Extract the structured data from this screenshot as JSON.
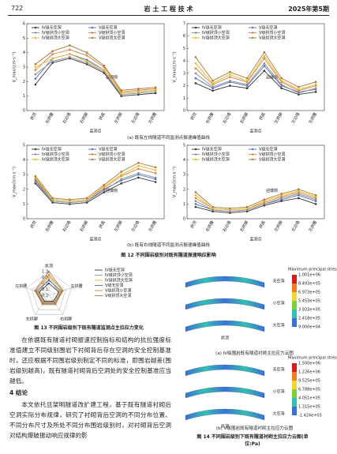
{
  "header": {
    "page": "722",
    "journal": "岩 土 工 程 技 术",
    "issue": "2025年第5期"
  },
  "chart_data": [
    {
      "type": "line",
      "categories": [
        "拱顶",
        "右拱腰",
        "右边墙",
        "右拱脚",
        "拱底",
        "左拱脚",
        "左边墙",
        "左拱腰"
      ],
      "xlabel": "监测点",
      "ylabel": "V_max/(cm·s⁻¹)",
      "annotation": "迎爆侧",
      "ylim": [
        0,
        6
      ],
      "yticks": [
        0,
        1,
        2,
        3,
        4,
        5,
        6
      ],
      "series": [
        {
          "name": "Ⅳ级无空洞",
          "color": "#333333",
          "values": [
            1.8,
            3.3,
            3.6,
            3.2,
            2.6,
            1.0,
            1.1,
            1.2
          ]
        },
        {
          "name": "Ⅴ级无空洞",
          "color": "#4a6fc2",
          "values": [
            2.2,
            3.6,
            3.9,
            3.5,
            2.8,
            1.2,
            1.3,
            1.4
          ]
        },
        {
          "name": "Ⅳ级拱顶小空洞",
          "color": "#8c8c8c",
          "values": [
            2.5,
            3.4,
            3.7,
            3.3,
            2.7,
            1.1,
            1.2,
            1.3
          ]
        },
        {
          "name": "Ⅴ级拱顶小空洞",
          "color": "#e07b39",
          "values": [
            2.8,
            3.9,
            4.2,
            3.8,
            3.0,
            1.3,
            1.4,
            1.5
          ]
        },
        {
          "name": "Ⅳ级拱顶大空洞",
          "color": "#e8b820",
          "values": [
            3.0,
            3.6,
            3.9,
            3.4,
            2.8,
            1.2,
            1.3,
            1.4
          ]
        },
        {
          "name": "Ⅴ级拱顶大空洞",
          "color": "#a67c38",
          "values": [
            3.2,
            4.1,
            4.5,
            4.0,
            3.1,
            1.4,
            1.5,
            1.6
          ]
        }
      ]
    },
    {
      "type": "line",
      "categories": [
        "拱顶",
        "右拱腰",
        "右边墙",
        "右拱脚",
        "拱底",
        "左拱脚",
        "左边墙",
        "左拱腰"
      ],
      "xlabel": "监测点",
      "ylabel": "V_max/(cm·s⁻¹)",
      "annotation": "迎爆侧",
      "ylim": [
        0,
        7
      ],
      "yticks": [
        0,
        1,
        2,
        3,
        4,
        5,
        6,
        7
      ],
      "series": [
        {
          "name": "Ⅳ级无空洞",
          "color": "#333333",
          "values": [
            2.2,
            1.6,
            2.0,
            1.8,
            3.2,
            1.8,
            1.3,
            1.5
          ]
        },
        {
          "name": "Ⅴ级无空洞",
          "color": "#4a6fc2",
          "values": [
            2.6,
            1.8,
            2.3,
            2.0,
            3.6,
            2.0,
            1.5,
            1.7
          ]
        },
        {
          "name": "Ⅳ级拱顶小空洞",
          "color": "#8c8c8c",
          "values": [
            3.0,
            1.9,
            2.4,
            2.1,
            3.8,
            2.1,
            1.4,
            1.8
          ]
        },
        {
          "name": "Ⅴ级拱顶小空洞",
          "color": "#e07b39",
          "values": [
            3.4,
            2.1,
            2.7,
            2.3,
            4.2,
            2.3,
            1.6,
            2.0
          ]
        },
        {
          "name": "Ⅳ级拱顶大空洞",
          "color": "#e8b820",
          "values": [
            3.8,
            2.2,
            2.9,
            2.4,
            4.4,
            2.4,
            1.7,
            2.1
          ]
        },
        {
          "name": "Ⅴ级拱顶大空洞",
          "color": "#a67c38",
          "values": [
            4.3,
            2.4,
            3.1,
            2.6,
            4.7,
            2.6,
            1.9,
            2.3
          ]
        }
      ]
    },
    {
      "type": "line",
      "categories": [
        "拱顶",
        "右拱腰",
        "右边墙",
        "右拱脚",
        "拱底",
        "左拱脚",
        "左边墙",
        "左拱腰"
      ],
      "xlabel": "监测点",
      "ylabel": "V_max/(cm·s⁻¹)",
      "annotation": "迎爆侧",
      "ylim": [
        0,
        5
      ],
      "yticks": [
        0,
        1,
        2,
        3,
        4,
        5
      ],
      "series": [
        {
          "name": "Ⅳ级无空洞",
          "color": "#333333",
          "values": [
            2.4,
            1.1,
            1.0,
            1.1,
            1.8,
            2.4,
            2.8,
            2.5
          ]
        },
        {
          "name": "Ⅴ级无空洞",
          "color": "#4a6fc2",
          "values": [
            2.6,
            1.2,
            1.1,
            1.2,
            2.0,
            2.6,
            3.0,
            2.7
          ]
        },
        {
          "name": "Ⅳ级拱顶小空洞",
          "color": "#8c8c8c",
          "values": [
            2.5,
            1.2,
            1.1,
            1.2,
            1.9,
            2.7,
            3.1,
            2.8
          ]
        },
        {
          "name": "Ⅴ级拱顶小空洞",
          "color": "#e07b39",
          "values": [
            2.7,
            1.3,
            1.2,
            1.3,
            2.1,
            2.9,
            3.4,
            3.1
          ]
        },
        {
          "name": "Ⅳ级拱顶大空洞",
          "color": "#e8b820",
          "values": [
            2.8,
            1.3,
            1.2,
            1.3,
            2.2,
            3.0,
            3.6,
            3.3
          ]
        },
        {
          "name": "Ⅴ级拱顶大空洞",
          "color": "#a67c38",
          "values": [
            2.9,
            1.4,
            1.3,
            1.4,
            2.3,
            3.2,
            3.8,
            3.5
          ]
        }
      ]
    },
    {
      "type": "line",
      "categories": [
        "拱顶",
        "右拱腰",
        "右边墙",
        "右拱脚",
        "拱底",
        "左拱脚",
        "左边墙",
        "左拱腰"
      ],
      "xlabel": "监测点",
      "ylabel": "V_max/(cm·s⁻¹)",
      "annotation": "迎爆侧",
      "ylim": [
        0,
        5
      ],
      "yticks": [
        0,
        1,
        2,
        3,
        4,
        5
      ],
      "series": [
        {
          "name": "Ⅳ级无空洞",
          "color": "#333333",
          "values": [
            0.8,
            0.5,
            0.4,
            0.5,
            0.9,
            1.2,
            1.4,
            1.0
          ]
        },
        {
          "name": "Ⅴ级无空洞",
          "color": "#4a6fc2",
          "values": [
            1.0,
            0.6,
            0.5,
            0.6,
            1.0,
            1.3,
            1.6,
            1.2
          ]
        },
        {
          "name": "Ⅳ级拱顶小空洞",
          "color": "#8c8c8c",
          "values": [
            1.2,
            0.6,
            0.5,
            0.6,
            1.0,
            1.4,
            1.7,
            1.3
          ]
        },
        {
          "name": "Ⅴ级拱顶小空洞",
          "color": "#e07b39",
          "values": [
            1.4,
            0.7,
            0.6,
            0.7,
            1.1,
            1.5,
            1.8,
            1.4
          ]
        },
        {
          "name": "Ⅳ级拱顶大空洞",
          "color": "#e8b820",
          "values": [
            1.6,
            0.7,
            0.6,
            0.7,
            1.2,
            1.6,
            1.9,
            1.5
          ]
        },
        {
          "name": "Ⅴ级拱顶大空洞",
          "color": "#a67c38",
          "values": [
            1.8,
            0.8,
            0.7,
            0.8,
            1.3,
            1.7,
            2.0,
            1.6
          ]
        }
      ]
    },
    {
      "type": "radar",
      "categories": [
        "拱顶",
        "右拱腰",
        "右拱脚",
        "左拱脚",
        "左拱腰"
      ],
      "rlim": [
        -0.3,
        1.3
      ],
      "rticks": [
        1.3,
        0.9,
        0.5,
        0.1,
        -0.3
      ],
      "series": [
        {
          "name": "Ⅳ级无空洞",
          "color": "#333333",
          "values": [
            0.5,
            0.4,
            0.2,
            0.2,
            0.4
          ]
        },
        {
          "name": "Ⅳ级拱顶小空洞",
          "color": "#8c8c8c",
          "values": [
            0.8,
            0.45,
            0.25,
            0.25,
            0.45
          ]
        },
        {
          "name": "Ⅳ级拱顶大空洞",
          "color": "#e8b820",
          "values": [
            1.0,
            0.5,
            0.3,
            0.3,
            0.5
          ]
        },
        {
          "name": "Ⅴ级无空洞",
          "color": "#4a6fc2",
          "values": [
            0.7,
            0.6,
            0.35,
            0.35,
            0.6
          ]
        },
        {
          "name": "Ⅴ级拱顶小空洞",
          "color": "#e07b39",
          "values": [
            1.1,
            0.65,
            0.4,
            0.4,
            0.65
          ]
        },
        {
          "name": "Ⅴ级拱顶大空洞",
          "color": "#a67c38",
          "values": [
            1.3,
            0.7,
            0.45,
            0.45,
            0.7
          ]
        }
      ]
    }
  ],
  "figure12": {
    "captions": [
      "(a) 既有左线隧道不同监测点振速峰值曲线",
      "(b) 既有右线隧道不同监测点振速峰值曲线"
    ],
    "title": "图 12   不同围岩级别对既有隧道振速响应影响"
  },
  "figure13": {
    "title": "图 13   不同围岩级别下既有隧道监测点主拉应力变化"
  },
  "figure14": {
    "panels": [
      {
        "colorbar_title": "Maximum principal stress",
        "colorbar_labels": [
          "1.001e+06",
          "8.493e+05",
          "6.973e+05",
          "5.453e+05",
          "3.933e+05",
          "2.418e+05",
          "9.000e+04"
        ],
        "labels": [
          "无空洞",
          "小空洞",
          "大空洞"
        ],
        "crown": "拱顶",
        "caption": "(a) Ⅳ级围岩既有隧道衬砌主拉应力云图"
      },
      {
        "colorbar_title": "Maximum principal stress",
        "colorbar_labels": [
          "1.500e+06",
          "1.226e+06",
          "9.525e+05",
          "6.788e+05",
          "4.051e+05",
          "1.315e+05",
          "-1.424e+05"
        ],
        "labels": [
          "无空洞",
          "小空洞",
          "大空洞"
        ],
        "crown": "拱顶",
        "caption": "(b) Ⅴ级围岩既有隧道衬砌主拉应力云图"
      }
    ],
    "title": "图 14   不同围岩级别下既有隧道衬砌主拉应力云图(单位:Pa)"
  },
  "body": {
    "paragraph1": "在依据既有隧道衬砌振速控制指标和结构的抗拉强度标准值建立不同级别围岩下衬砌背后存在空洞的安全控制基准时，还应根据不同围岩级别制定不同的标准，即围岩越差(围岩级别越高)，既有隧道衬砌背后空洞处的安全控制基准应当越低。",
    "heading": "4   结论",
    "paragraph2": "本文依托旦架明隧道改扩建工程，基于既有隧道衬砌后空洞实际分布规律，研究了衬砌背后空洞的不同分布位置、不同分布尺寸及所处不同分布围岩级别时，对衬砌背后空洞对结构爆破振动响应规律的影"
  }
}
